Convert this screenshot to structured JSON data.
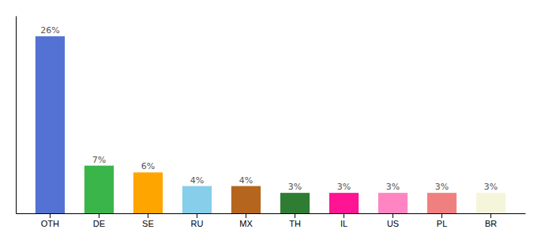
{
  "chart_data": {
    "type": "bar",
    "categories": [
      "OTH",
      "DE",
      "SE",
      "RU",
      "MX",
      "TH",
      "IL",
      "US",
      "PL",
      "BR"
    ],
    "values": [
      26,
      7,
      6,
      4,
      4,
      3,
      3,
      3,
      3,
      3
    ],
    "value_labels": [
      "26%",
      "7%",
      "6%",
      "4%",
      "4%",
      "3%",
      "3%",
      "3%",
      "3%",
      "3%"
    ],
    "colors": [
      "#5472d3",
      "#3ab54a",
      "#ffa500",
      "#87ceeb",
      "#b5651d",
      "#2e7d32",
      "#ff1493",
      "#ff85c2",
      "#f08080",
      "#f5f5dc"
    ],
    "ylim": [
      0,
      29
    ],
    "data_labels": true,
    "tick_labels": "x",
    "grid": false
  }
}
